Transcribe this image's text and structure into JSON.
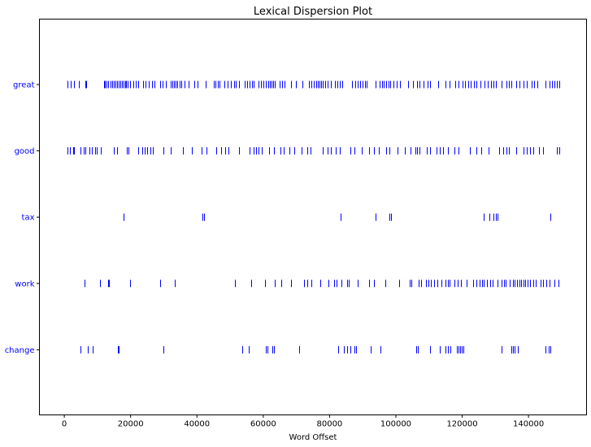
{
  "chart_data": {
    "type": "scatter",
    "title": "Lexical Dispersion Plot",
    "xlabel": "Word Offset",
    "ylabel": "",
    "xlim": [
      -7500,
      157500
    ],
    "xticks": [
      0,
      20000,
      40000,
      60000,
      80000,
      100000,
      120000,
      140000
    ],
    "xtick_labels": [
      "0",
      "20000",
      "40000",
      "60000",
      "80000",
      "100000",
      "120000",
      "140000"
    ],
    "marker": "|",
    "marker_color": "#0000ff",
    "grid": false,
    "legend": "none",
    "words": [
      "great",
      "good",
      "tax",
      "work",
      "change"
    ],
    "series": [
      {
        "name": "great",
        "values": [
          900,
          2000,
          3000,
          4400,
          6300,
          6700,
          11900,
          12300,
          12800,
          13300,
          13900,
          14400,
          14900,
          15500,
          16000,
          16500,
          17000,
          17400,
          17900,
          18300,
          18700,
          19200,
          19900,
          20700,
          21600,
          22400,
          23800,
          24600,
          25500,
          26400,
          27300,
          29000,
          29600,
          30600,
          32000,
          32600,
          33100,
          33600,
          34100,
          34700,
          35300,
          36300,
          37500,
          39100,
          40300,
          42600,
          45200,
          45700,
          46200,
          46700,
          48200,
          49300,
          50200,
          51200,
          51700,
          52800,
          54300,
          55100,
          55800,
          56500,
          57200,
          58600,
          59300,
          60000,
          60800,
          61400,
          61900,
          62400,
          62900,
          63400,
          65000,
          65700,
          66400,
          68400,
          69800,
          71700,
          73800,
          74400,
          75200,
          75900,
          76500,
          77000,
          77500,
          78000,
          78600,
          79300,
          80500,
          81500,
          82400,
          83200,
          83800,
          86700,
          87700,
          88400,
          89200,
          89900,
          90600,
          91300,
          93900,
          95100,
          95800,
          96400,
          97000,
          97700,
          98400,
          99300,
          100300,
          101300,
          103600,
          105100,
          106300,
          107000,
          108400,
          109600,
          110400,
          112700,
          115000,
          116200,
          117900,
          118900,
          120000,
          120800,
          121800,
          122600,
          123500,
          124400,
          125600,
          126800,
          127600,
          128800,
          129400,
          130200,
          131800,
          133300,
          134200,
          134900,
          136200,
          137300,
          138400,
          139600,
          140900,
          141700,
          142600,
          145200,
          146300,
          147200,
          147900,
          148600,
          149400
        ]
      },
      {
        "name": "good",
        "values": [
          900,
          1800,
          2600,
          3000,
          4900,
          5900,
          6400,
          7600,
          8300,
          9200,
          9800,
          11100,
          14900,
          15800,
          18900,
          19300,
          22400,
          23400,
          24200,
          25100,
          25900,
          26700,
          29800,
          32200,
          35800,
          38400,
          41400,
          43000,
          45800,
          47300,
          48500,
          49600,
          52700,
          55800,
          57000,
          57900,
          58500,
          59600,
          61700,
          63200,
          65200,
          66100,
          67800,
          69300,
          71500,
          73300,
          74200,
          78000,
          79300,
          80500,
          81900,
          83000,
          86400,
          87600,
          89600,
          91900,
          93300,
          94800,
          97000,
          98100,
          100500,
          102700,
          104400,
          105800,
          106500,
          107200,
          109300,
          110300,
          112300,
          113300,
          114200,
          115800,
          117600,
          119000,
          122200,
          124400,
          125800,
          128000,
          131100,
          132300,
          133400,
          134100,
          136400,
          138500,
          139400,
          140400,
          141500,
          143200,
          144500,
          148600,
          149400
        ]
      },
      {
        "name": "tax",
        "values": [
          17900,
          41700,
          42100,
          83300,
          93900,
          98100,
          98500,
          126600,
          128100,
          129500,
          130100,
          130700,
          146500
        ]
      },
      {
        "name": "work",
        "values": [
          6200,
          10800,
          13100,
          13500,
          19800,
          28800,
          33300,
          51400,
          56300,
          60600,
          63500,
          65400,
          68500,
          72200,
          73300,
          74400,
          77300,
          79700,
          81300,
          82100,
          83500,
          85300,
          85800,
          88500,
          91800,
          93500,
          96700,
          101000,
          104200,
          104700,
          106900,
          107500,
          109100,
          109800,
          110500,
          111500,
          112600,
          113700,
          114900,
          115600,
          116300,
          117700,
          118700,
          119500,
          121400,
          123400,
          124400,
          125300,
          126000,
          126600,
          127500,
          128500,
          129100,
          130700,
          131900,
          132500,
          133200,
          134400,
          135200,
          135900,
          136600,
          137200,
          137800,
          138400,
          139100,
          139800,
          140500,
          141400,
          142200,
          143600,
          144500,
          145400,
          146300,
          147800,
          149000
        ]
      },
      {
        "name": "change",
        "values": [
          5000,
          7200,
          8500,
          16200,
          16500,
          30000,
          53700,
          55700,
          60800,
          61300,
          62800,
          63300,
          70800,
          82700,
          84300,
          85300,
          86300,
          87400,
          87900,
          92300,
          95300,
          106200,
          106700,
          110400,
          113300,
          115000,
          115600,
          116500,
          118300,
          118800,
          119300,
          119800,
          120300,
          131800,
          134700,
          135300,
          135900,
          136700,
          145200,
          146200,
          146700
        ]
      }
    ]
  }
}
